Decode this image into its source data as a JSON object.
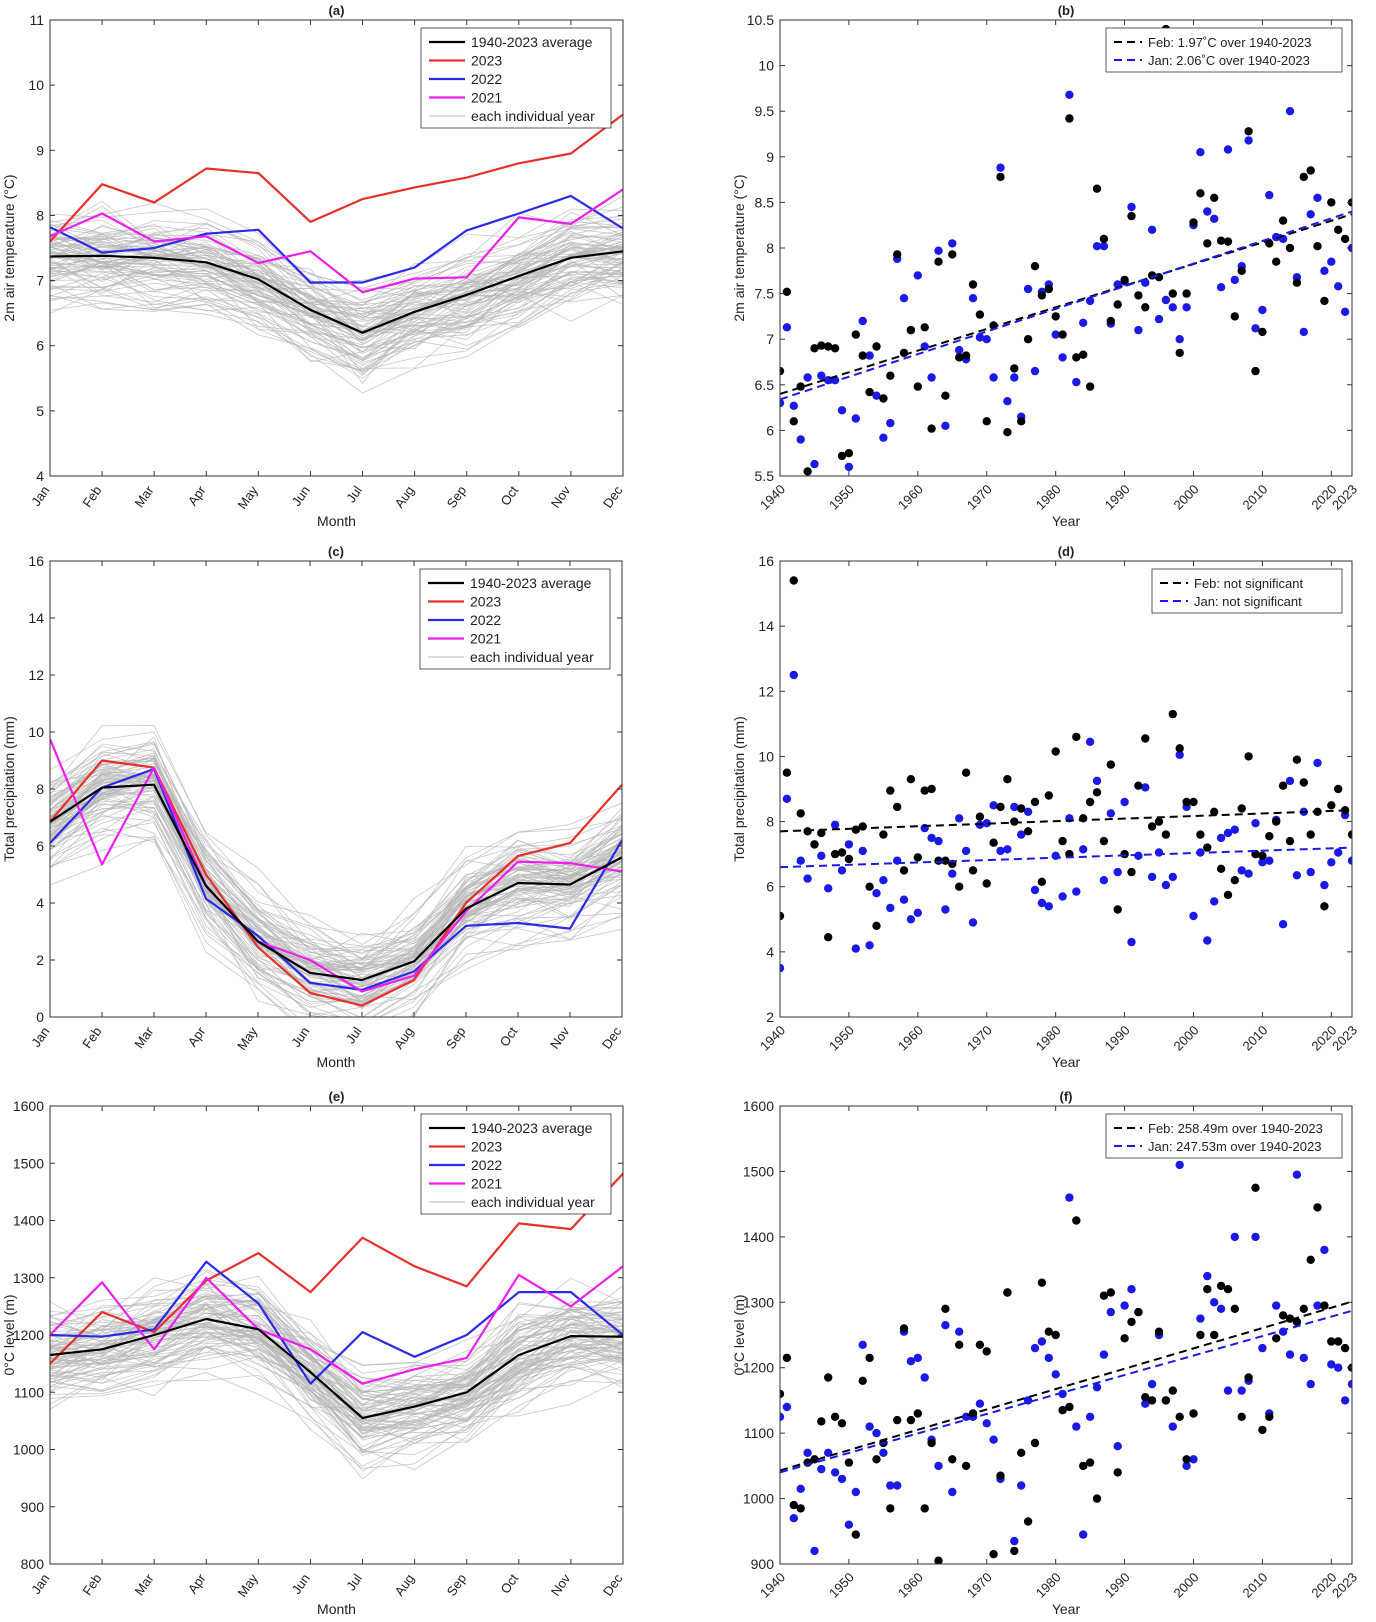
{
  "chart_data": [
    {
      "panel": "(a)",
      "type": "line",
      "title": "(a)",
      "xlabel": "Month",
      "ylabel": "2m air temperature (°C)",
      "ylim": [
        4,
        11
      ],
      "yticks": [
        4,
        5,
        6,
        7,
        8,
        9,
        10,
        11
      ],
      "categories": [
        "Jan",
        "Feb",
        "Mar",
        "Apr",
        "May",
        "Jun",
        "Jul",
        "Aug",
        "Sep",
        "Oct",
        "Nov",
        "Dec"
      ],
      "legend_position": "top-right",
      "series": [
        {
          "name": "1940-2023 average",
          "color": "#000000",
          "values": [
            7.37,
            7.38,
            7.35,
            7.28,
            7.02,
            6.55,
            6.2,
            6.52,
            6.78,
            7.07,
            7.35,
            7.45
          ]
        },
        {
          "name": "2023",
          "color": "#e8302a",
          "values": [
            7.6,
            8.48,
            8.2,
            8.72,
            8.65,
            7.9,
            8.25,
            8.43,
            8.58,
            8.8,
            8.95,
            9.55
          ]
        },
        {
          "name": "2022",
          "color": "#2a2ae8",
          "values": [
            7.82,
            7.43,
            7.5,
            7.72,
            7.78,
            6.97,
            6.97,
            7.2,
            7.77,
            8.03,
            8.3,
            7.8
          ]
        },
        {
          "name": "2021",
          "color": "#ee1fee",
          "values": [
            7.68,
            8.03,
            7.6,
            7.68,
            7.27,
            7.45,
            6.82,
            7.03,
            7.05,
            7.97,
            7.87,
            8.4
          ]
        }
      ],
      "background_label": "each individual year",
      "background_color": "#b5b5b5"
    },
    {
      "panel": "(b)",
      "type": "scatter",
      "title": "(b)",
      "xlabel": "Year",
      "ylabel": "2m air temperature (°C)",
      "xlim": [
        1940,
        2023
      ],
      "ylim": [
        5.5,
        10.5
      ],
      "xticks": [
        1940,
        1950,
        1960,
        1970,
        1980,
        1990,
        2000,
        2010,
        2020,
        2023
      ],
      "yticks": [
        5.5,
        6,
        6.5,
        7,
        7.5,
        8,
        8.5,
        9,
        9.5,
        10,
        10.5
      ],
      "legend_position": "top-right",
      "series": [
        {
          "name": "Feb",
          "color": "#000000",
          "values": [
            6.65,
            7.52,
            6.1,
            6.48,
            5.55,
            6.9,
            6.93,
            6.92,
            6.9,
            5.72,
            5.75,
            7.05,
            6.82,
            6.42,
            6.92,
            6.35,
            6.6,
            7.93,
            6.85,
            7.1,
            6.48,
            7.13,
            6.02,
            7.85,
            6.38,
            7.93,
            6.8,
            6.82,
            7.6,
            7.27,
            6.1,
            7.15,
            8.78,
            5.98,
            6.68,
            6.1,
            7.0,
            7.8,
            7.48,
            7.55,
            7.25,
            7.05,
            9.42,
            6.8,
            6.83,
            6.48,
            8.65,
            8.1,
            7.2,
            7.38,
            7.65,
            8.35,
            7.48,
            7.35,
            7.7,
            7.68,
            10.4,
            7.5,
            6.85,
            7.5,
            8.28,
            8.6,
            8.05,
            8.55,
            8.08,
            8.07,
            7.25,
            7.75,
            9.28,
            6.65,
            7.08,
            8.05,
            7.85,
            8.3,
            8.0,
            7.62,
            8.78,
            8.85,
            8.02,
            7.42,
            8.5,
            8.2,
            8.1,
            8.5
          ]
        },
        {
          "name": "Jan",
          "color": "#1a1ae6",
          "values": [
            6.3,
            7.13,
            6.27,
            5.9,
            6.58,
            5.63,
            6.6,
            6.55,
            6.55,
            6.22,
            5.6,
            6.13,
            7.2,
            6.82,
            6.38,
            5.92,
            6.08,
            7.88,
            7.45,
            7.1,
            7.7,
            6.92,
            6.58,
            7.97,
            6.05,
            8.05,
            6.88,
            6.78,
            7.45,
            7.02,
            7.0,
            6.58,
            8.88,
            6.32,
            6.58,
            6.15,
            7.55,
            6.65,
            7.52,
            7.6,
            7.05,
            6.8,
            9.68,
            6.53,
            7.18,
            7.42,
            8.02,
            8.02,
            7.17,
            7.6,
            7.63,
            8.45,
            7.1,
            7.62,
            8.2,
            7.22,
            7.43,
            7.35,
            7.0,
            7.35,
            8.25,
            9.05,
            8.4,
            8.32,
            7.57,
            9.08,
            7.65,
            7.8,
            9.18,
            7.12,
            7.32,
            8.58,
            8.12,
            8.1,
            9.5,
            7.68,
            7.08,
            8.37,
            8.55,
            7.75,
            7.85,
            7.58,
            7.3,
            8.0
          ]
        },
        {
          "name": "Feb trend",
          "color": "#000000",
          "dashed": true,
          "start": [
            1940,
            6.4
          ],
          "end": [
            2023,
            8.37
          ],
          "label": "Feb: 1.97˚C over 1940-2023"
        },
        {
          "name": "Jan trend",
          "color": "#1a1ae6",
          "dashed": true,
          "start": [
            1940,
            6.34
          ],
          "end": [
            2023,
            8.4
          ],
          "label": "Jan: 2.06˚C over 1940-2023"
        }
      ]
    },
    {
      "panel": "(c)",
      "type": "line",
      "title": "(c)",
      "xlabel": "Month",
      "ylabel": "Total precipitation (mm)",
      "ylim": [
        0,
        16
      ],
      "yticks": [
        0,
        2,
        4,
        6,
        8,
        10,
        12,
        14,
        16
      ],
      "categories": [
        "Jan",
        "Feb",
        "Mar",
        "Apr",
        "May",
        "Jun",
        "Jul",
        "Aug",
        "Sep",
        "Oct",
        "Nov",
        "Dec"
      ],
      "legend_position": "top-right",
      "series": [
        {
          "name": "1940-2023 average",
          "color": "#000000",
          "values": [
            6.85,
            8.05,
            8.15,
            4.6,
            2.65,
            1.55,
            1.3,
            1.95,
            3.8,
            4.7,
            4.65,
            5.6
          ]
        },
        {
          "name": "2023",
          "color": "#e8302a",
          "values": [
            6.85,
            9.0,
            8.75,
            5.0,
            2.45,
            0.85,
            0.4,
            1.3,
            4.0,
            5.65,
            6.1,
            8.15
          ]
        },
        {
          "name": "2022",
          "color": "#2a2ae8",
          "values": [
            6.1,
            8.05,
            8.7,
            4.15,
            2.85,
            1.2,
            0.95,
            1.6,
            3.2,
            3.3,
            3.1,
            6.2
          ]
        },
        {
          "name": "2021",
          "color": "#ee1fee",
          "values": [
            9.75,
            5.35,
            8.75,
            4.6,
            2.65,
            2.0,
            0.9,
            1.45,
            3.7,
            5.45,
            5.4,
            5.1
          ]
        }
      ],
      "background_label": "each individual year",
      "background_color": "#b5b5b5"
    },
    {
      "panel": "(d)",
      "type": "scatter",
      "title": "(d)",
      "xlabel": "Year",
      "ylabel": "Total precipitation (mm)",
      "xlim": [
        1940,
        2023
      ],
      "ylim": [
        2,
        16
      ],
      "xticks": [
        1940,
        1950,
        1960,
        1970,
        1980,
        1990,
        2000,
        2010,
        2020,
        2023
      ],
      "yticks": [
        2,
        4,
        6,
        8,
        10,
        12,
        14,
        16
      ],
      "legend_position": "top-right",
      "series": [
        {
          "name": "Feb",
          "color": "#000000",
          "values": [
            5.1,
            9.5,
            15.4,
            8.25,
            7.7,
            7.3,
            7.65,
            4.45,
            7.0,
            7.05,
            6.85,
            7.75,
            7.85,
            6.0,
            4.8,
            7.6,
            8.95,
            8.45,
            6.5,
            9.3,
            6.9,
            8.95,
            9.0,
            6.8,
            6.8,
            6.7,
            6.0,
            9.5,
            6.5,
            8.15,
            6.1,
            7.35,
            8.45,
            9.3,
            8.0,
            8.4,
            7.7,
            8.6,
            6.15,
            8.8,
            10.15,
            7.4,
            7.0,
            10.6,
            8.1,
            8.6,
            8.9,
            7.4,
            9.75,
            5.3,
            7.0,
            6.45,
            9.1,
            10.55,
            7.85,
            8.0,
            7.6,
            11.3,
            10.25,
            8.6,
            8.6,
            7.6,
            7.2,
            8.3,
            6.55,
            5.75,
            6.2,
            8.4,
            10.0,
            7.0,
            6.95,
            7.55,
            8.0,
            9.1,
            7.4,
            9.9,
            9.2,
            7.6,
            8.3,
            5.4,
            8.5,
            9.0,
            8.35,
            7.6
          ]
        },
        {
          "name": "Jan",
          "color": "#1a1ae6",
          "values": [
            3.5,
            8.7,
            12.5,
            6.8,
            6.25,
            7.3,
            6.95,
            5.95,
            7.9,
            6.5,
            7.3,
            4.1,
            7.1,
            4.2,
            5.8,
            6.2,
            5.35,
            6.8,
            5.6,
            5.0,
            5.2,
            7.8,
            7.5,
            7.4,
            5.3,
            6.4,
            8.1,
            7.1,
            4.9,
            7.9,
            7.95,
            8.5,
            7.1,
            7.15,
            8.45,
            7.6,
            8.3,
            5.9,
            5.5,
            5.4,
            6.95,
            5.7,
            8.1,
            5.85,
            7.15,
            10.45,
            9.25,
            6.2,
            8.25,
            6.45,
            8.6,
            4.3,
            6.95,
            9.05,
            6.3,
            7.05,
            6.05,
            6.3,
            10.05,
            8.45,
            5.1,
            7.05,
            4.35,
            5.55,
            7.5,
            7.65,
            7.75,
            6.5,
            6.4,
            7.95,
            6.75,
            6.8,
            8.05,
            4.85,
            9.25,
            6.35,
            8.3,
            6.45,
            9.8,
            6.05,
            6.75,
            7.05,
            8.2,
            6.8
          ]
        },
        {
          "name": "Feb trend",
          "color": "#000000",
          "dashed": true,
          "start": [
            1940,
            7.7
          ],
          "end": [
            2023,
            8.35
          ],
          "label": "Feb: not significant"
        },
        {
          "name": "Jan trend",
          "color": "#1a1ae6",
          "dashed": true,
          "start": [
            1940,
            6.6
          ],
          "end": [
            2023,
            7.2
          ],
          "label": "Jan: not significant"
        }
      ]
    },
    {
      "panel": "(e)",
      "type": "line",
      "title": "(e)",
      "xlabel": "Month",
      "ylabel": "0°C level (m)",
      "ylim": [
        800,
        1600
      ],
      "yticks": [
        800,
        900,
        1000,
        1100,
        1200,
        1300,
        1400,
        1500,
        1600
      ],
      "categories": [
        "Jan",
        "Feb",
        "Mar",
        "Apr",
        "May",
        "Jun",
        "Jul",
        "Aug",
        "Sep",
        "Oct",
        "Nov",
        "Dec"
      ],
      "legend_position": "top-right",
      "series": [
        {
          "name": "1940-2023 average",
          "color": "#000000",
          "values": [
            1165,
            1175,
            1200,
            1228,
            1210,
            1135,
            1055,
            1075,
            1100,
            1165,
            1198,
            1197
          ]
        },
        {
          "name": "2023",
          "color": "#e8302a",
          "values": [
            1150,
            1240,
            1205,
            1295,
            1343,
            1275,
            1370,
            1320,
            1285,
            1395,
            1385,
            1482
          ]
        },
        {
          "name": "2022",
          "color": "#2a2ae8",
          "values": [
            1200,
            1197,
            1210,
            1328,
            1255,
            1115,
            1205,
            1162,
            1200,
            1275,
            1275,
            1200
          ]
        },
        {
          "name": "2021",
          "color": "#ee1fee",
          "values": [
            1200,
            1292,
            1175,
            1300,
            1210,
            1175,
            1115,
            1140,
            1160,
            1305,
            1250,
            1320
          ]
        }
      ],
      "background_label": "each individual year",
      "background_color": "#b5b5b5"
    },
    {
      "panel": "(f)",
      "type": "scatter",
      "title": "(f)",
      "xlabel": "Year",
      "ylabel": "0°C level (m)",
      "xlim": [
        1940,
        2023
      ],
      "ylim": [
        900,
        1600
      ],
      "xticks": [
        1940,
        1950,
        1960,
        1970,
        1980,
        1990,
        2000,
        2010,
        2020,
        2023
      ],
      "yticks": [
        900,
        1000,
        1100,
        1200,
        1300,
        1400,
        1500,
        1600
      ],
      "legend_position": "top-right",
      "series": [
        {
          "name": "Feb",
          "color": "#000000",
          "values": [
            1160,
            1215,
            990,
            985,
            1055,
            1060,
            1118,
            1185,
            1125,
            1115,
            1055,
            945,
            1180,
            1215,
            1060,
            1085,
            985,
            1120,
            1260,
            1120,
            1130,
            985,
            1085,
            905,
            1290,
            1060,
            1235,
            1050,
            1130,
            1235,
            1225,
            915,
            1035,
            1315,
            920,
            1070,
            965,
            1085,
            1330,
            1255,
            1250,
            1135,
            1140,
            1425,
            1050,
            1055,
            1000,
            1310,
            1315,
            1040,
            1245,
            1270,
            1285,
            1155,
            1150,
            1255,
            1150,
            1165,
            1125,
            1060,
            1130,
            1250,
            1320,
            1250,
            1325,
            1320,
            1290,
            1125,
            1185,
            1475,
            1105,
            1125,
            1245,
            1280,
            1275,
            1270,
            1290,
            1365,
            1445,
            1295,
            1240,
            1240,
            1230,
            1200
          ]
        },
        {
          "name": "Jan",
          "color": "#1a1ae6",
          "values": [
            1125,
            1140,
            970,
            1015,
            1070,
            920,
            1045,
            1070,
            1040,
            1030,
            960,
            1010,
            1235,
            1110,
            1100,
            1070,
            1020,
            1020,
            1255,
            1210,
            1215,
            1185,
            1090,
            1050,
            1265,
            1010,
            1255,
            1125,
            1125,
            1145,
            1115,
            1090,
            1030,
            1315,
            935,
            1020,
            1150,
            1230,
            1240,
            1215,
            1190,
            1160,
            1460,
            1110,
            945,
            1125,
            1170,
            1220,
            1285,
            1080,
            1295,
            1320,
            1285,
            1145,
            1175,
            1250,
            1150,
            1110,
            1510,
            1050,
            1060,
            1275,
            1340,
            1300,
            1290,
            1165,
            1400,
            1165,
            1180,
            1400,
            1230,
            1130,
            1295,
            1255,
            1220,
            1495,
            1215,
            1175,
            1295,
            1380,
            1205,
            1200,
            1150,
            1175
          ]
        },
        {
          "name": "Feb trend",
          "color": "#000000",
          "dashed": true,
          "start": [
            1940,
            1043
          ],
          "end": [
            2023,
            1301
          ],
          "label": "Feb: 258.49m over 1940-2023"
        },
        {
          "name": "Jan trend",
          "color": "#1a1ae6",
          "dashed": true,
          "start": [
            1940,
            1040
          ],
          "end": [
            2023,
            1287
          ],
          "label": "Jan: 247.53m over 1940-2023"
        }
      ]
    }
  ]
}
